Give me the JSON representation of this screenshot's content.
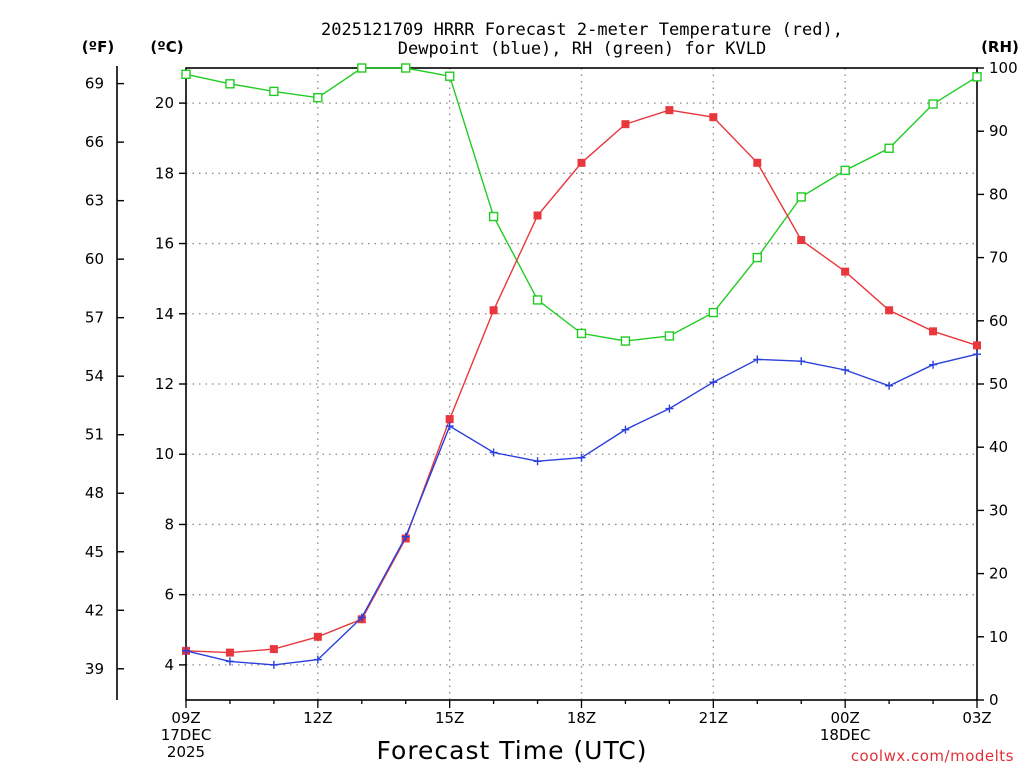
{
  "chart_data": {
    "type": "line",
    "title": [
      "2025121709 HRRR Forecast 2-meter Temperature (red),",
      "Dewpoint (blue), RH (green) for KVLD"
    ],
    "xlabel": "Forecast Time (UTC)",
    "watermark": "coolwx.com/modelts",
    "units": {
      "fahrenheit": "(ºF)",
      "celsius": "(ºC)",
      "rh": "(RH)"
    },
    "x": [
      9,
      10,
      11,
      12,
      13,
      14,
      15,
      16,
      17,
      18,
      19,
      20,
      21,
      22,
      23,
      24,
      25,
      26,
      27
    ],
    "xlim": [
      9,
      27
    ],
    "x_ticks": [
      {
        "x": 9,
        "lines": [
          "09Z",
          "17DEC",
          "2025"
        ]
      },
      {
        "x": 12,
        "lines": [
          "12Z"
        ]
      },
      {
        "x": 15,
        "lines": [
          "15Z"
        ]
      },
      {
        "x": 18,
        "lines": [
          "18Z"
        ]
      },
      {
        "x": 21,
        "lines": [
          "21Z"
        ]
      },
      {
        "x": 24,
        "lines": [
          "00Z",
          "18DEC"
        ]
      },
      {
        "x": 27,
        "lines": [
          "03Z"
        ]
      }
    ],
    "ylim_c": [
      3,
      21
    ],
    "ylim_rh": [
      0,
      100
    ],
    "celsius_ticks": [
      4,
      6,
      8,
      10,
      12,
      14,
      16,
      18,
      20
    ],
    "fahrenheit_ticks": [
      39,
      42,
      45,
      48,
      51,
      54,
      57,
      60,
      63,
      66,
      69
    ],
    "rh_ticks": [
      0,
      10,
      20,
      30,
      40,
      50,
      60,
      70,
      80,
      90,
      100
    ],
    "series": [
      {
        "name": "Temperature",
        "axis": "celsius",
        "color": "#e8383d",
        "marker": "filled-square",
        "values": [
          4.4,
          4.35,
          4.45,
          4.8,
          5.3,
          7.6,
          11.0,
          14.1,
          16.8,
          18.3,
          19.4,
          19.8,
          19.6,
          18.3,
          16.1,
          15.2,
          14.1,
          13.5,
          13.1
        ]
      },
      {
        "name": "Dewpoint",
        "axis": "celsius",
        "color": "#2a3fdc",
        "marker": "plus",
        "values": [
          4.4,
          4.1,
          4.0,
          4.15,
          5.35,
          7.65,
          10.8,
          10.05,
          9.8,
          9.9,
          10.7,
          11.3,
          12.05,
          12.7,
          12.65,
          12.4,
          11.95,
          12.55,
          12.85
        ]
      },
      {
        "name": "RH",
        "axis": "rh",
        "color": "#22cc22",
        "marker": "open-square",
        "values": [
          99,
          97.5,
          96.3,
          95.3,
          100,
          100,
          98.7,
          76.5,
          63.3,
          58.0,
          56.8,
          57.6,
          61.3,
          70.0,
          79.6,
          83.8,
          87.3,
          94.3,
          98.6
        ]
      }
    ]
  }
}
